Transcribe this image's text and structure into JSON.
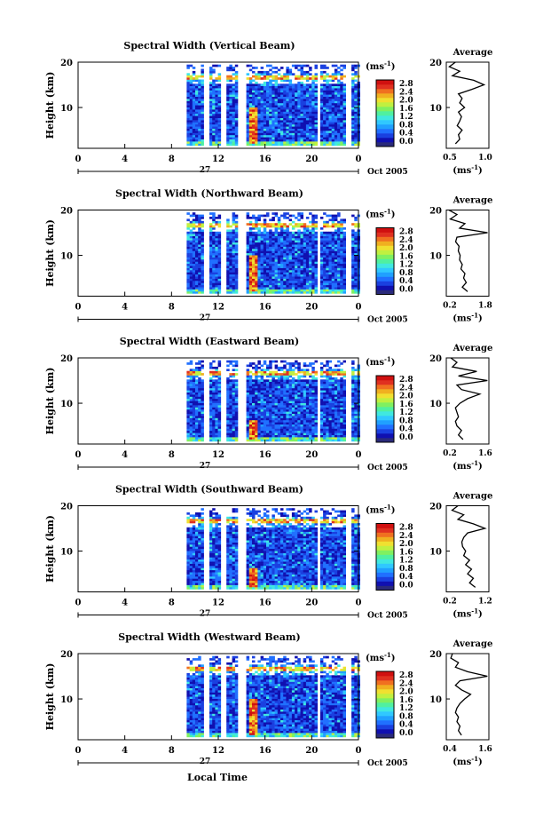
{
  "figure": {
    "bottom_xlabel": "Local Time",
    "colorbar": {
      "unit_label": "(ms",
      "unit_exp": "-1",
      "unit_close": ")",
      "ticks": [
        "0.0",
        "0.4",
        "0.8",
        "1.2",
        "1.6",
        "2.0",
        "2.4",
        "2.8"
      ],
      "colors": [
        "#2a2a7a",
        "#1010b0",
        "#1a40e0",
        "#2070ff",
        "#20a0ff",
        "#30c8ff",
        "#40e8e0",
        "#50f0a0",
        "#80f060",
        "#c0f040",
        "#f0e030",
        "#f0b020",
        "#f07020",
        "#e03020",
        "#d01010"
      ]
    },
    "profile_unit": "(ms",
    "profile_unit_exp": "-1",
    "profile_unit_close": ")"
  },
  "chart_data": [
    {
      "type": "heatmap",
      "title": "Spectral Width (Vertical Beam)",
      "ylabel": "Height (km)",
      "xlabel": "",
      "x_ticks": [
        "0",
        "4",
        "8",
        "12",
        "16",
        "20",
        "0"
      ],
      "xlim": [
        0,
        24
      ],
      "y_ticks": [
        "10",
        "20"
      ],
      "ylim": [
        1,
        20
      ],
      "date_label": "27",
      "month_label": "Oct 2005",
      "data_start_hour": 9.3,
      "gaps_hours": [
        [
          10.6,
          11.2
        ],
        [
          12.0,
          12.6
        ],
        [
          13.6,
          14.4
        ],
        [
          20.3,
          20.6
        ],
        [
          22.8,
          23.2
        ]
      ],
      "bright_band": {
        "x_range_hours": [
          14.5,
          15.3
        ],
        "height_range_km": [
          2,
          10
        ],
        "value_ms": 2.8
      },
      "profile": {
        "title": "Average",
        "xlabel_ticks": [
          "0.5",
          "1.0"
        ],
        "xlim": [
          0.4,
          1.1
        ],
        "y_ticks": [
          "10",
          "20"
        ],
        "heights_km": [
          2,
          3,
          4,
          5,
          6,
          7,
          8,
          9,
          10,
          11,
          12,
          13,
          14,
          15,
          16,
          17,
          18,
          19,
          20
        ],
        "values": [
          0.55,
          0.62,
          0.6,
          0.66,
          0.58,
          0.62,
          0.65,
          0.6,
          0.7,
          0.62,
          0.66,
          0.6,
          0.82,
          1.02,
          0.85,
          0.5,
          0.62,
          0.45,
          0.55
        ]
      }
    },
    {
      "type": "heatmap",
      "title": "Spectral Width (Northward Beam)",
      "ylabel": "Height (km)",
      "xlabel": "",
      "x_ticks": [
        "0",
        "4",
        "8",
        "12",
        "16",
        "20",
        "0"
      ],
      "xlim": [
        0,
        24
      ],
      "y_ticks": [
        "10",
        "20"
      ],
      "ylim": [
        1,
        20
      ],
      "date_label": "27",
      "month_label": "Oct 2005",
      "data_start_hour": 9.3,
      "gaps_hours": [
        [
          10.6,
          11.2
        ],
        [
          12.0,
          12.6
        ],
        [
          13.6,
          14.4
        ],
        [
          20.3,
          20.6
        ],
        [
          22.8,
          23.2
        ]
      ],
      "bright_band": {
        "x_range_hours": [
          14.5,
          15.3
        ],
        "height_range_km": [
          2,
          10
        ],
        "value_ms": 2.8
      },
      "profile": {
        "title": "Average",
        "xlabel_ticks": [
          "0.2",
          "1.8"
        ],
        "xlim": [
          0.2,
          1.8
        ],
        "y_ticks": [
          "10",
          "20"
        ],
        "heights_km": [
          2,
          3,
          4,
          5,
          6,
          7,
          8,
          9,
          10,
          11,
          12,
          13,
          14,
          15,
          16,
          17,
          18,
          19,
          20
        ],
        "values": [
          1.0,
          0.8,
          0.95,
          0.85,
          0.9,
          0.75,
          0.8,
          0.7,
          0.72,
          0.65,
          0.68,
          0.55,
          0.6,
          1.75,
          0.7,
          0.9,
          0.35,
          0.6,
          0.3
        ]
      }
    },
    {
      "type": "heatmap",
      "title": "Spectral Width (Eastward Beam)",
      "ylabel": "Height (km)",
      "xlabel": "",
      "x_ticks": [
        "0",
        "4",
        "8",
        "12",
        "16",
        "20",
        "0"
      ],
      "xlim": [
        0,
        24
      ],
      "y_ticks": [
        "10",
        "20"
      ],
      "ylim": [
        1,
        20
      ],
      "date_label": "27",
      "month_label": "Oct 2005",
      "data_start_hour": 9.3,
      "gaps_hours": [
        [
          10.6,
          11.2
        ],
        [
          12.0,
          12.6
        ],
        [
          13.6,
          14.4
        ],
        [
          20.3,
          20.6
        ],
        [
          22.8,
          23.2
        ]
      ],
      "bright_band": {
        "x_range_hours": [
          14.5,
          15.3
        ],
        "height_range_km": [
          2,
          6
        ],
        "value_ms": 2.4
      },
      "profile": {
        "title": "Average",
        "xlabel_ticks": [
          "0.2",
          "1.6"
        ],
        "xlim": [
          0.2,
          1.6
        ],
        "y_ticks": [
          "10",
          "20"
        ],
        "heights_km": [
          2,
          3,
          4,
          5,
          6,
          7,
          8,
          9,
          10,
          11,
          12,
          13,
          14,
          15,
          16,
          17,
          18,
          19,
          20
        ],
        "values": [
          0.75,
          0.6,
          0.7,
          0.55,
          0.5,
          0.6,
          0.55,
          0.5,
          0.65,
          0.9,
          1.3,
          0.7,
          0.55,
          1.55,
          0.6,
          1.2,
          0.4,
          0.55,
          0.35
        ]
      }
    },
    {
      "type": "heatmap",
      "title": "Spectral Width (Southward Beam)",
      "ylabel": "Height (km)",
      "xlabel": "",
      "x_ticks": [
        "0",
        "4",
        "8",
        "12",
        "16",
        "20",
        "0"
      ],
      "xlim": [
        0,
        24
      ],
      "y_ticks": [
        "10",
        "20"
      ],
      "ylim": [
        1,
        20
      ],
      "date_label": "27",
      "month_label": "Oct 2005",
      "data_start_hour": 9.3,
      "gaps_hours": [
        [
          10.6,
          11.2
        ],
        [
          12.0,
          12.6
        ],
        [
          13.6,
          14.4
        ],
        [
          20.3,
          20.6
        ],
        [
          22.8,
          23.2
        ]
      ],
      "bright_band": {
        "x_range_hours": [
          14.5,
          15.3
        ],
        "height_range_km": [
          2,
          6
        ],
        "value_ms": 2.4
      },
      "profile": {
        "title": "Average",
        "xlabel_ticks": [
          "0.2",
          "1.2"
        ],
        "xlim": [
          0.2,
          1.3
        ],
        "y_ticks": [
          "10",
          "20"
        ],
        "heights_km": [
          2,
          3,
          4,
          5,
          6,
          7,
          8,
          9,
          10,
          11,
          12,
          13,
          14,
          15,
          16,
          17,
          18,
          19,
          20
        ],
        "values": [
          0.95,
          0.8,
          0.9,
          0.75,
          0.85,
          0.7,
          0.8,
          0.65,
          0.7,
          0.62,
          0.6,
          0.65,
          0.75,
          1.2,
          0.9,
          0.5,
          0.65,
          0.35,
          0.5
        ]
      }
    },
    {
      "type": "heatmap",
      "title": "Spectral Width (Westward Beam)",
      "ylabel": "Height (km)",
      "xlabel": "",
      "x_ticks": [
        "0",
        "4",
        "8",
        "12",
        "16",
        "20",
        "0"
      ],
      "xlim": [
        0,
        24
      ],
      "y_ticks": [
        "10",
        "20"
      ],
      "ylim": [
        1,
        20
      ],
      "date_label": "27",
      "month_label": "Oct 2005",
      "data_start_hour": 9.3,
      "gaps_hours": [
        [
          10.6,
          11.2
        ],
        [
          12.0,
          12.6
        ],
        [
          13.6,
          14.4
        ],
        [
          20.3,
          20.6
        ],
        [
          22.8,
          23.2
        ]
      ],
      "bright_band": {
        "x_range_hours": [
          14.5,
          15.3
        ],
        "height_range_km": [
          2,
          10
        ],
        "value_ms": 2.8
      },
      "profile": {
        "title": "Average",
        "xlabel_ticks": [
          "0.4",
          "1.6"
        ],
        "xlim": [
          0.3,
          1.7
        ],
        "y_ticks": [
          "10",
          "20"
        ],
        "heights_km": [
          2,
          3,
          4,
          5,
          6,
          7,
          8,
          9,
          10,
          11,
          12,
          13,
          14,
          15,
          16,
          17,
          18,
          19,
          20
        ],
        "values": [
          0.8,
          0.7,
          0.75,
          0.65,
          0.7,
          0.6,
          0.65,
          0.75,
          0.9,
          1.1,
          0.8,
          0.6,
          0.75,
          1.65,
          1.0,
          0.6,
          0.7,
          0.45,
          0.5
        ]
      }
    }
  ]
}
